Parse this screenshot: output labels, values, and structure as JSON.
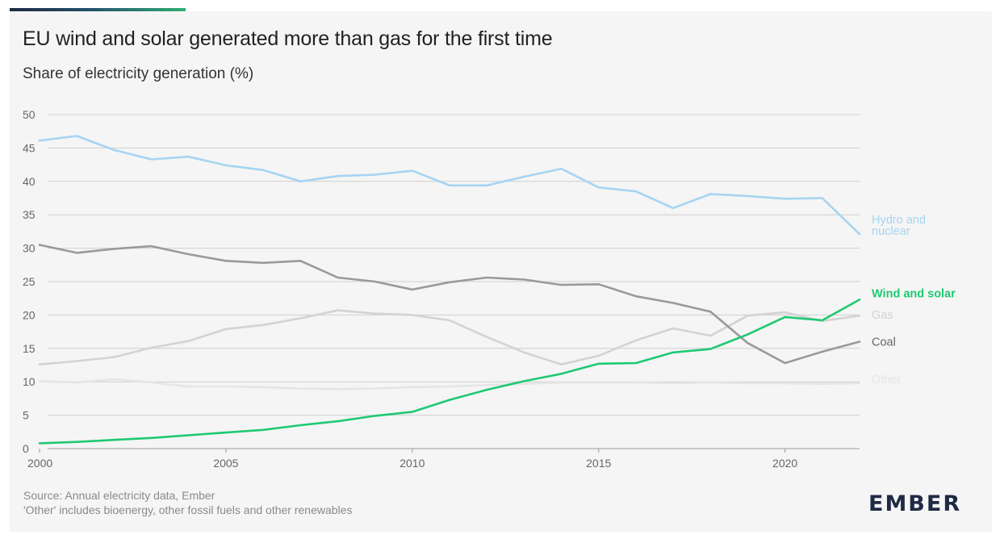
{
  "header": {
    "title": "EU wind and solar generated more than gas for the first time",
    "subtitle": "Share of electricity generation (%)"
  },
  "footer": {
    "source": "Source: Annual electricity data, Ember",
    "note": "'Other' includes bioenergy, other fossil fuels and other renewables",
    "logo": "EMBER"
  },
  "colors": {
    "accent": "#2fae74",
    "grid": "#cfcfcf",
    "axis_text": "#666666"
  },
  "chart_data": {
    "type": "line",
    "title": "EU wind and solar generated more than gas for the first time",
    "subtitle": "Share of electricity generation (%)",
    "xlabel": "",
    "ylabel": "",
    "xlim": [
      2000,
      2022
    ],
    "ylim": [
      0,
      50
    ],
    "x_ticks": [
      2000,
      2005,
      2010,
      2015,
      2020
    ],
    "y_ticks": [
      0,
      5,
      10,
      15,
      20,
      25,
      30,
      35,
      40,
      45,
      50
    ],
    "grid": "horizontal",
    "legend": "inline-right",
    "x": [
      2000,
      2001,
      2002,
      2003,
      2004,
      2005,
      2006,
      2007,
      2008,
      2009,
      2010,
      2011,
      2012,
      2013,
      2014,
      2015,
      2016,
      2017,
      2018,
      2019,
      2020,
      2021,
      2022
    ],
    "series": [
      {
        "name": "Hydro and\nnuclear",
        "label_lines": [
          "Hydro and",
          "nuclear"
        ],
        "color": "#a6d4f2",
        "bold": false,
        "values": [
          46.1,
          46.8,
          44.7,
          43.3,
          43.7,
          42.4,
          41.7,
          40.0,
          40.8,
          41.0,
          41.6,
          39.4,
          39.4,
          40.7,
          41.9,
          39.1,
          38.5,
          36.0,
          38.1,
          37.8,
          37.4,
          37.5,
          32.1
        ]
      },
      {
        "name": "Wind and solar",
        "label_lines": [
          "Wind and solar"
        ],
        "color": "#1fc972",
        "bold": true,
        "values": [
          0.8,
          1.0,
          1.3,
          1.6,
          2.0,
          2.4,
          2.8,
          3.5,
          4.1,
          4.9,
          5.5,
          7.3,
          8.8,
          10.1,
          11.2,
          12.7,
          12.8,
          14.4,
          14.9,
          17.1,
          19.7,
          19.2,
          22.3
        ]
      },
      {
        "name": "Gas",
        "label_lines": [
          "Gas"
        ],
        "color": "#d3d3d3",
        "bold": false,
        "values": [
          12.6,
          13.1,
          13.7,
          15.1,
          16.1,
          17.9,
          18.5,
          19.5,
          20.7,
          20.2,
          20.0,
          19.2,
          16.7,
          14.4,
          12.6,
          13.9,
          16.2,
          18.0,
          16.9,
          19.9,
          20.4,
          19.1,
          19.9
        ]
      },
      {
        "name": "Coal",
        "label_lines": [
          "Coal"
        ],
        "color": "#9a9a9a",
        "bold": false,
        "values": [
          30.5,
          29.3,
          29.9,
          30.3,
          29.1,
          28.1,
          27.8,
          28.1,
          25.6,
          25.0,
          23.8,
          24.9,
          25.6,
          25.3,
          24.5,
          24.6,
          22.8,
          21.8,
          20.5,
          15.8,
          12.8,
          14.5,
          16.0
        ]
      },
      {
        "name": "Other",
        "label_lines": [
          "Other"
        ],
        "color": "#e5e5e5",
        "bold": false,
        "values": [
          10.1,
          9.9,
          10.4,
          9.9,
          9.3,
          9.3,
          9.2,
          9.0,
          8.9,
          9.0,
          9.2,
          9.3,
          9.5,
          9.7,
          9.9,
          9.9,
          9.9,
          9.8,
          9.9,
          9.8,
          9.8,
          9.7,
          9.8
        ]
      }
    ]
  }
}
